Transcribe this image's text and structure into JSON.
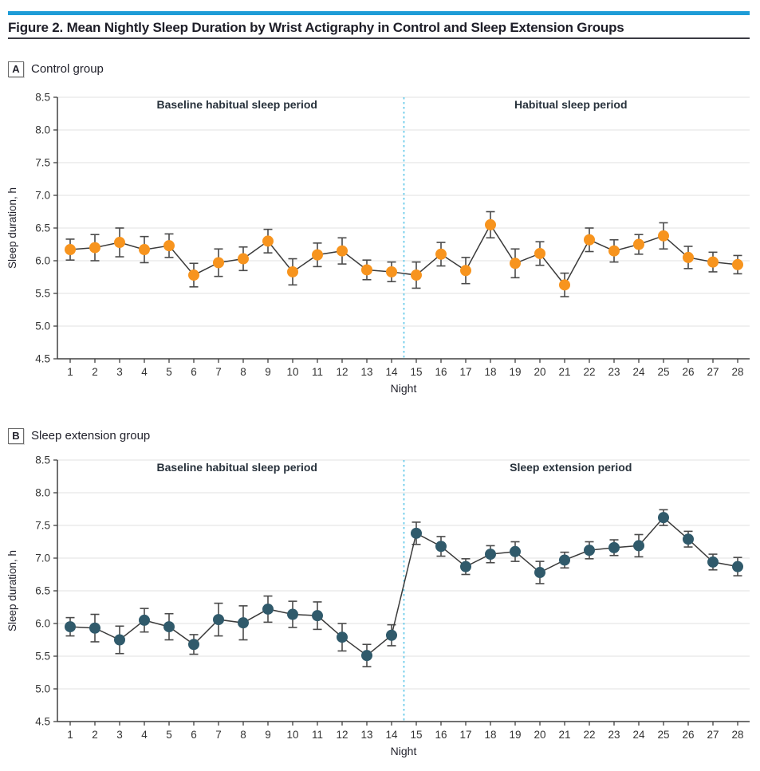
{
  "header": {
    "title": "Figure 2. Mean Nightly Sleep Duration by Wrist Actigraphy in Control and Sleep Extension Groups"
  },
  "colors": {
    "accent_bar": "#1E9CD7",
    "control_point": "#F7941E",
    "extension_point": "#305A6B",
    "series_line": "#3A3A3A",
    "error_bar": "#4A4A4A",
    "gridline": "#E7E7E7",
    "axis": "#404040",
    "tick_text": "#333333",
    "annotation_text": "#28323C",
    "divider": "#5BC6E8"
  },
  "chart_data": [
    {
      "type": "line",
      "panel_label": "A",
      "panel_title": "Control group",
      "xlabel": "Night",
      "ylabel": "Sleep duration, h",
      "ylim": [
        4.5,
        8.5
      ],
      "ytick_step": 0.5,
      "grid": true,
      "divider_x": 14.5,
      "annotation_left": "Baseline habitual sleep period",
      "annotation_right": "Habitual sleep period",
      "x": [
        1,
        2,
        3,
        4,
        5,
        6,
        7,
        8,
        9,
        10,
        11,
        12,
        13,
        14,
        15,
        16,
        17,
        18,
        19,
        20,
        21,
        22,
        23,
        24,
        25,
        26,
        27,
        28
      ],
      "series": [
        {
          "name": "Control group",
          "color": "#F7941E",
          "values": [
            6.17,
            6.2,
            6.28,
            6.17,
            6.23,
            5.78,
            5.97,
            6.03,
            6.3,
            5.83,
            6.09,
            6.15,
            5.86,
            5.83,
            5.78,
            6.1,
            5.85,
            6.55,
            5.96,
            6.11,
            5.63,
            6.32,
            6.15,
            6.25,
            6.38,
            6.05,
            5.98,
            5.94
          ],
          "errors": [
            0.16,
            0.2,
            0.22,
            0.2,
            0.18,
            0.18,
            0.21,
            0.18,
            0.18,
            0.2,
            0.18,
            0.2,
            0.15,
            0.15,
            0.2,
            0.18,
            0.2,
            0.2,
            0.22,
            0.18,
            0.18,
            0.18,
            0.17,
            0.15,
            0.2,
            0.17,
            0.15,
            0.14
          ]
        }
      ]
    },
    {
      "type": "line",
      "panel_label": "B",
      "panel_title": "Sleep extension group",
      "xlabel": "Night",
      "ylabel": "Sleep duration, h",
      "ylim": [
        4.5,
        8.5
      ],
      "ytick_step": 0.5,
      "grid": true,
      "divider_x": 14.5,
      "annotation_left": "Baseline habitual sleep period",
      "annotation_right": "Sleep extension period",
      "x": [
        1,
        2,
        3,
        4,
        5,
        6,
        7,
        8,
        9,
        10,
        11,
        12,
        13,
        14,
        15,
        16,
        17,
        18,
        19,
        20,
        21,
        22,
        23,
        24,
        25,
        26,
        27,
        28
      ],
      "series": [
        {
          "name": "Sleep extension group",
          "color": "#305A6B",
          "values": [
            5.95,
            5.93,
            5.75,
            6.05,
            5.95,
            5.68,
            6.06,
            6.01,
            6.22,
            6.14,
            6.12,
            5.79,
            5.51,
            5.82,
            7.38,
            7.18,
            6.87,
            7.06,
            7.1,
            6.78,
            6.97,
            7.12,
            7.16,
            7.19,
            7.62,
            7.29,
            6.94,
            6.87
          ],
          "errors": [
            0.14,
            0.21,
            0.21,
            0.18,
            0.2,
            0.15,
            0.25,
            0.26,
            0.2,
            0.2,
            0.21,
            0.21,
            0.17,
            0.16,
            0.17,
            0.15,
            0.12,
            0.13,
            0.15,
            0.17,
            0.12,
            0.13,
            0.12,
            0.17,
            0.12,
            0.12,
            0.12,
            0.14
          ]
        }
      ]
    }
  ]
}
